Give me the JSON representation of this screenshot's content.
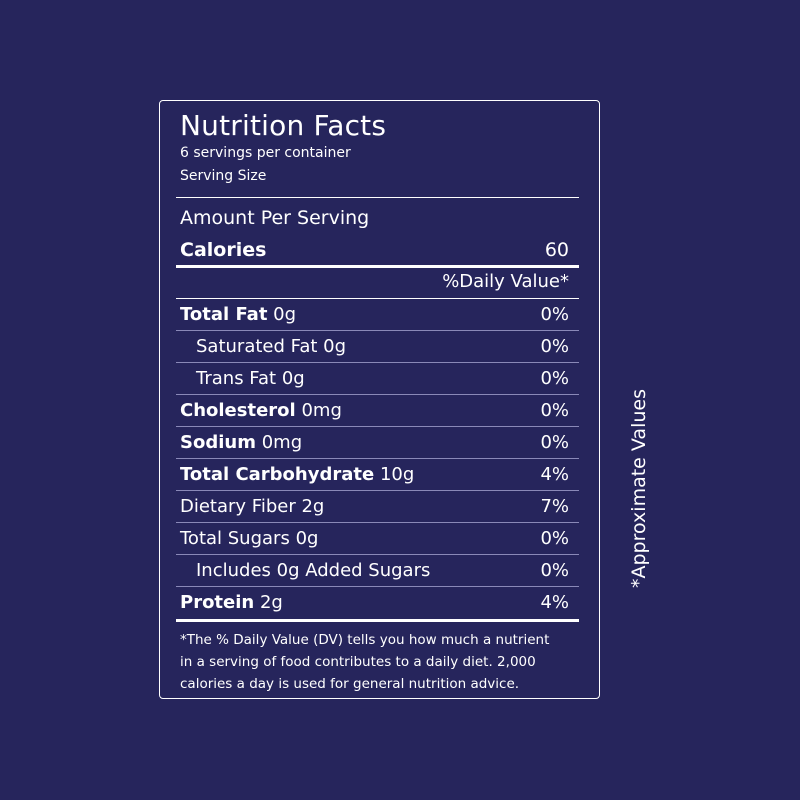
{
  "title": "Nutrition Facts",
  "servings": "6 servings per container",
  "serving_size": "Serving Size",
  "amount_per_serving": "Amount Per Serving",
  "calories": {
    "label": "Calories",
    "value": "60"
  },
  "daily_value_header": "%Daily Value*",
  "nutrients": [
    {
      "name": "Total Fat",
      "amount": "0g",
      "dv": "0%"
    },
    {
      "name": "Saturated Fat",
      "amount": "0g",
      "dv": "0%"
    },
    {
      "name": "Trans Fat",
      "amount": "0g",
      "dv": "0%"
    },
    {
      "name": "Cholesterol",
      "amount": "0mg",
      "dv": "0%"
    },
    {
      "name": "Sodium",
      "amount": "0mg",
      "dv": "0%"
    },
    {
      "name": "Total Carbohydrate",
      "amount": "10g",
      "dv": "4%"
    },
    {
      "name": "Dietary Fiber",
      "amount": "2g",
      "dv": "7%"
    },
    {
      "name": "Total Sugars",
      "amount": "0g",
      "dv": "0%"
    },
    {
      "name": "Includes 0g Added Sugars",
      "amount": "",
      "dv": "0%"
    },
    {
      "name": "Protein",
      "amount": "2g",
      "dv": "4%"
    }
  ],
  "footnote": [
    "*The % Daily Value (DV) tells you how much a nutrient",
    "in a serving of food contributes to a daily diet. 2,000",
    "calories a day is used for general nutrition advice."
  ],
  "side_note": "*Approximate Values",
  "colors": {
    "background": "#26255c",
    "text": "#ffffff"
  }
}
